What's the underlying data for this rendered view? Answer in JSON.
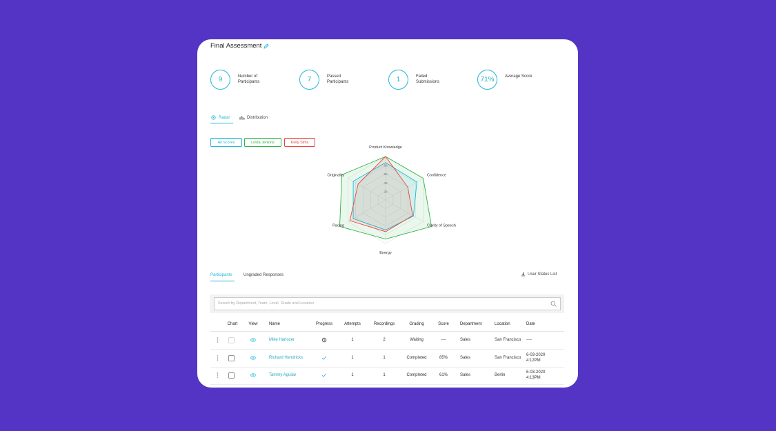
{
  "header": {
    "title": "Final Assessment"
  },
  "stats": [
    {
      "value": "9",
      "label": "Number of Participants"
    },
    {
      "value": "7",
      "label": "Passed Participants"
    },
    {
      "value": "1",
      "label": "Failed Submissions"
    },
    {
      "value": "71%",
      "label": "Average Score"
    }
  ],
  "view_tabs": [
    "Radar",
    "Distribution"
  ],
  "radar": {
    "type": "radar",
    "categories": [
      "Product Knowledge",
      "Confidence",
      "Clarity of Speech",
      "Energy",
      "Pacing",
      "Originality"
    ],
    "series": [
      {
        "name": "All Scores",
        "color": "#22b8d8",
        "values": [
          86,
          83,
          74,
          69,
          86,
          86
        ]
      },
      {
        "name": "Linda Jenkins",
        "color": "#2fb34a",
        "values": [
          100,
          100,
          122,
          90,
          122,
          116
        ]
      },
      {
        "name": "Kelly Sims",
        "color": "#e8453c",
        "values": [
          100,
          59,
          72,
          73,
          95,
          73
        ]
      }
    ],
    "rlim": [
      0,
      100
    ],
    "rticks": [
      20,
      40,
      60,
      80
    ]
  },
  "list_tabs": [
    "Participants",
    "Ungraded Responses"
  ],
  "action": "User Status List",
  "search_placeholder": "Search by Department, Team, Level, Grade and Location",
  "table": {
    "columns": [
      "Chart",
      "View",
      "Name",
      "Progress",
      "Attempts",
      "Recordings",
      "Grading",
      "Score",
      "Department",
      "Location",
      "Date"
    ],
    "rows": [
      {
        "name": "Mike Harlozer",
        "progress": "pending",
        "attempts": "1",
        "recordings": "2",
        "grading": "Waiting",
        "score": "----",
        "department": "Sales",
        "location": "San Francisco",
        "date": "----"
      },
      {
        "name": "Richard Hendricks",
        "progress": "complete",
        "attempts": "1",
        "recordings": "1",
        "grading": "Completed",
        "score": "85%",
        "department": "Sales",
        "location": "San Francisco",
        "date": "6-03-2020 4:12PM"
      },
      {
        "name": "Tammy Aguilar",
        "progress": "complete",
        "attempts": "1",
        "recordings": "1",
        "grading": "Completed",
        "score": "61%",
        "department": "Sales",
        "location": "Berlin",
        "date": "6-03-2020 4:13PM"
      }
    ]
  }
}
